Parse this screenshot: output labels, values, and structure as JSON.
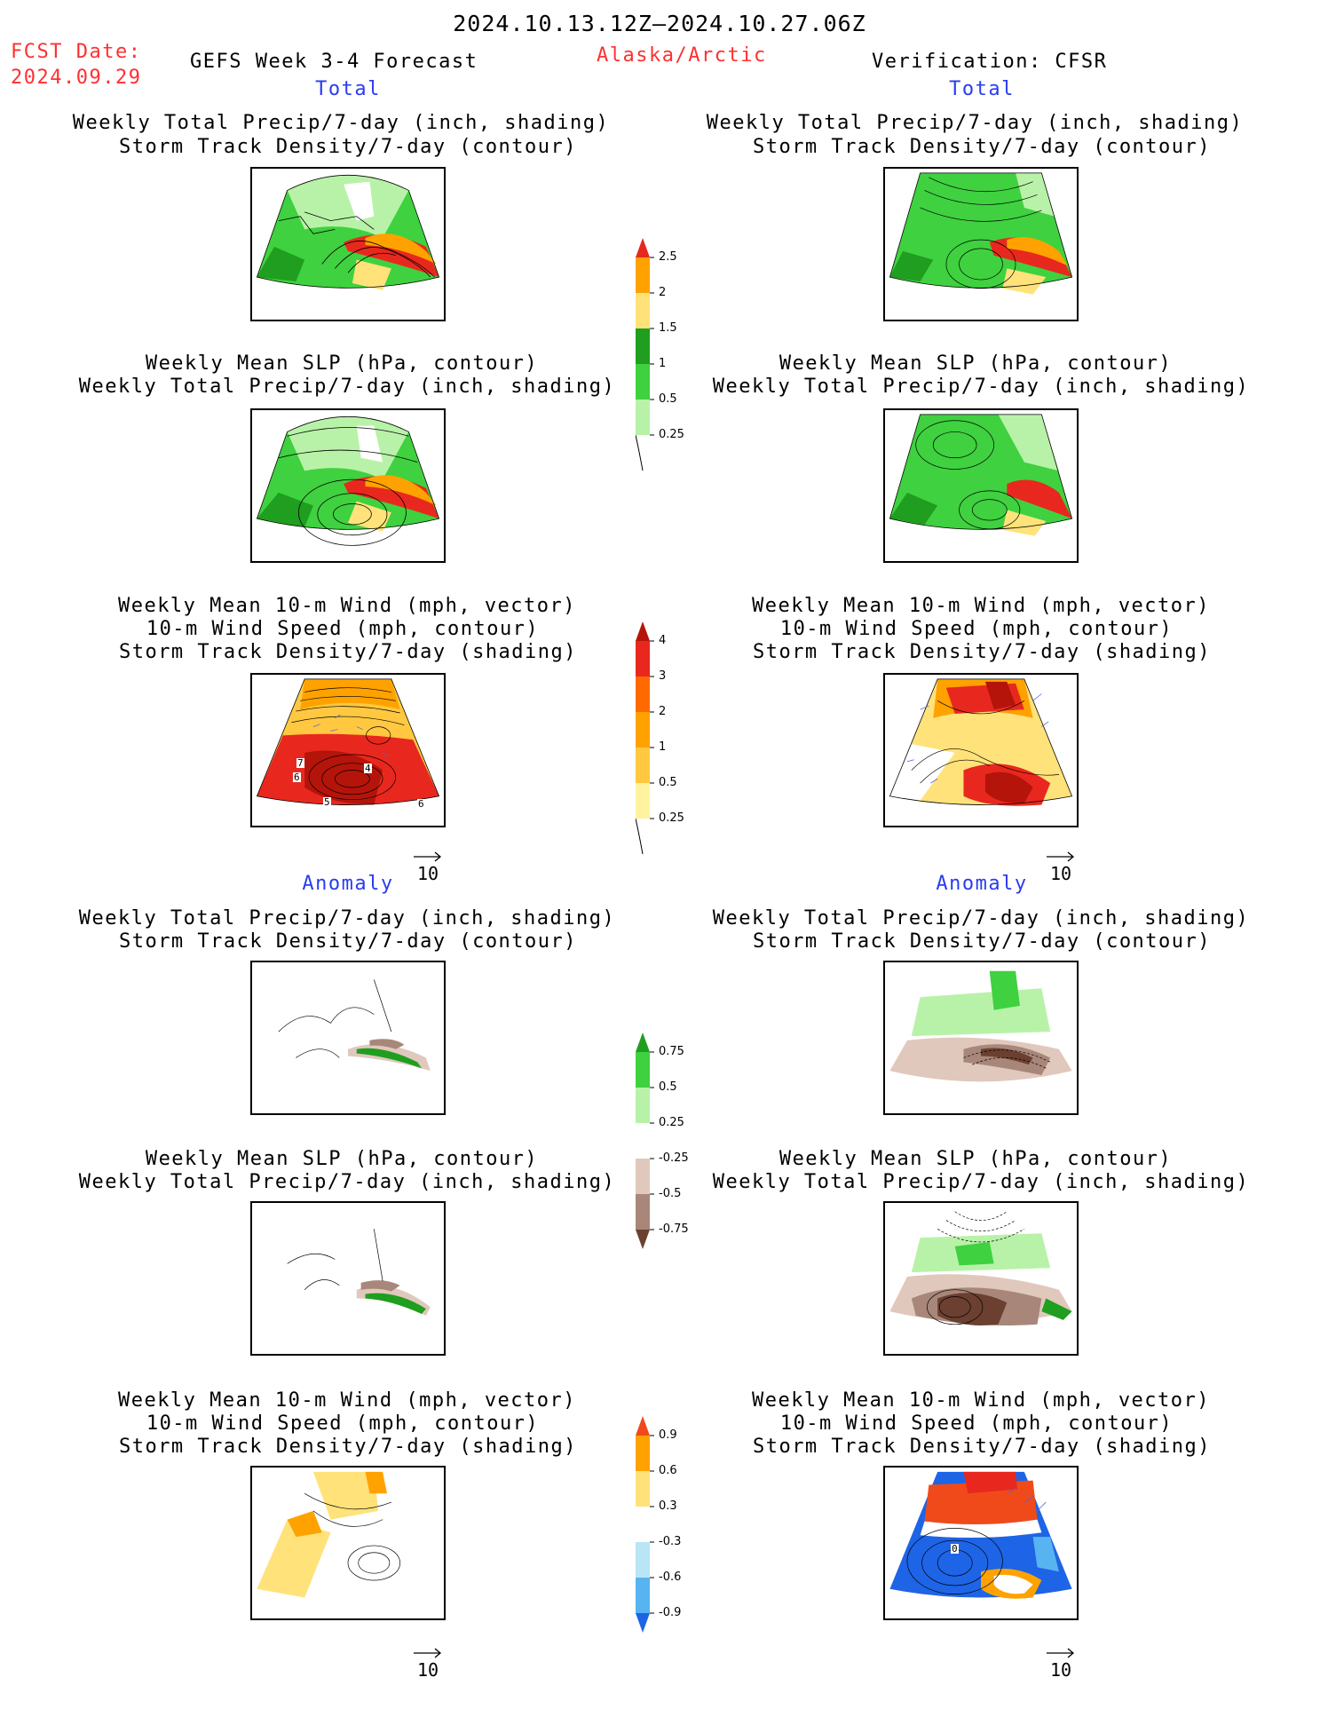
{
  "header": {
    "date_range": "2024.10.13.12Z–2024.10.27.06Z",
    "fcst_label": "FCST Date:",
    "fcst_date": "2024.09.29",
    "model": "GEFS Week 3-4 Forecast",
    "region": "Alaska/Arctic",
    "verification": "Verification: CFSR"
  },
  "sections": {
    "total": "Total",
    "anomaly": "Anomaly"
  },
  "titles": {
    "precip_storm": [
      "Weekly Total Precip/7-day (inch, shading)",
      "Storm Track Density/7-day (contour)"
    ],
    "slp_precip": [
      "Weekly Mean SLP (hPa, contour)",
      "Weekly Total Precip/7-day (inch, shading)"
    ],
    "wind": [
      "Weekly Mean 10-m Wind (mph, vector)",
      "10-m Wind Speed (mph, contour)",
      "Storm Track Density/7-day (shading)"
    ]
  },
  "vector_ref": "10",
  "colorbars": {
    "precip_total": {
      "labels": [
        "2.5",
        "2",
        "1.5",
        "1",
        "0.5",
        "0.25"
      ],
      "colors": [
        "#e8281e",
        "#ffa200",
        "#ffe27a",
        "#1f9e1f",
        "#3fd13f",
        "#b8f2a8"
      ]
    },
    "storm_total": {
      "labels": [
        "4",
        "3",
        "2",
        "1",
        "0.5",
        "0.25"
      ],
      "colors": [
        "#b4140a",
        "#e8281e",
        "#ff6a00",
        "#ffa200",
        "#ffc840",
        "#fff3a0"
      ]
    },
    "precip_anom": {
      "labels": [
        "0.75",
        "0.5",
        "0.25",
        "-0.25",
        "-0.5",
        "-0.75"
      ],
      "colors": [
        "#1f9e1f",
        "#3fd13f",
        "#b8f2a8",
        "#ffffff",
        "#e0c8bc",
        "#a8877a",
        "#6b4030"
      ]
    },
    "storm_anom": {
      "labels": [
        "0.9",
        "0.6",
        "0.3",
        "-0.3",
        "-0.6",
        "-0.9"
      ],
      "colors": [
        "#f04a1a",
        "#ffa200",
        "#ffe27a",
        "#ffffff",
        "#b8e6f5",
        "#58b4f0",
        "#1e64e6"
      ]
    }
  },
  "map_labels": {
    "storm_total_left": [
      "7",
      "6",
      "4",
      "5",
      "6"
    ],
    "storm_anom_right": [
      "0"
    ]
  }
}
